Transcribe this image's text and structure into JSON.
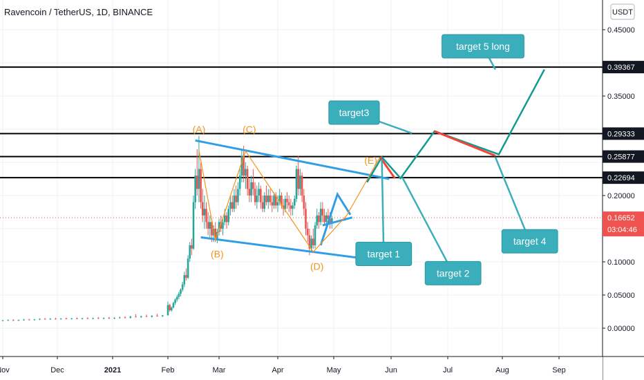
{
  "header": {
    "title": "Ravencoin / TetherUS, 1D, BINANCE"
  },
  "currency_button": "USDT",
  "colors": {
    "up": "#26a69a",
    "down": "#ef5350",
    "channel": "#2f9ee6",
    "wave": "#f7931a",
    "target_box": "#3aaeba",
    "projection_green": "#139a8f",
    "projection_red": "#f44336",
    "grid": "#eef0f3"
  },
  "chart_data": {
    "type": "candlestick",
    "symbol": "Ravencoin / TetherUS",
    "interval": "1D",
    "exchange": "BINANCE",
    "x_axis": {
      "labels": [
        "Nov",
        "Dec",
        "2021",
        "Feb",
        "Mar",
        "Apr",
        "May",
        "Jun",
        "Jul",
        "Aug",
        "Sep"
      ]
    },
    "y_axis": {
      "ylim": [
        -0.065,
        0.49
      ],
      "ticks": [
        0.45,
        0.35,
        0.2,
        0.1,
        0.05,
        0.0
      ],
      "tick_labels": [
        "0.45000",
        "0.35000",
        "0.20000",
        "0.10000",
        "0.05000",
        "0.00000"
      ]
    },
    "horizontal_levels": [
      {
        "value": 0.39367,
        "label": "0.39367"
      },
      {
        "value": 0.29333,
        "label": "0.29333"
      },
      {
        "value": 0.25877,
        "label": "0.25877"
      },
      {
        "value": 0.22694,
        "label": "0.22694"
      }
    ],
    "current_price": {
      "value": 0.16652,
      "label": "0.16652",
      "countdown": "03:04:46"
    },
    "wave_labels": [
      {
        "text": "(A)",
        "x": 110,
        "y": 0.295
      },
      {
        "text": "(B)",
        "x": 120,
        "y": 0.107
      },
      {
        "text": "(C)",
        "x": 137,
        "y": 0.295
      },
      {
        "text": "(D)",
        "x": 173,
        "y": 0.088
      },
      {
        "text": "(E)",
        "x": 202,
        "y": 0.248
      }
    ],
    "wave_path": [
      [
        110,
        0.268
      ],
      [
        119,
        0.133
      ],
      [
        135,
        0.267
      ],
      [
        171,
        0.115
      ],
      [
        189,
        0.17
      ],
      [
        207,
        0.258
      ]
    ],
    "channel_lines": [
      [
        [
          108,
          0.283
        ],
        [
          212,
          0.225
        ]
      ],
      [
        [
          111,
          0.137
        ],
        [
          204,
          0.103
        ]
      ]
    ],
    "triangle_lines": [
      [
        [
          176,
          0.155
        ],
        [
          192,
          0.167
        ]
      ],
      [
        [
          175,
          0.125
        ],
        [
          184,
          0.202
        ],
        [
          191,
          0.171
        ]
      ]
    ],
    "projection_path": {
      "green": [
        [
          200,
          0.22
        ],
        [
          208,
          0.258
        ],
        [
          218,
          0.226
        ],
        [
          236,
          0.297
        ],
        [
          272,
          0.262
        ],
        [
          297,
          0.39
        ]
      ],
      "red": [
        [
          207,
          0.258
        ],
        [
          215,
          0.226
        ],
        [
          236,
          0.297
        ],
        [
          270,
          0.26
        ]
      ]
    },
    "targets": [
      {
        "text": "target 1",
        "x": 209,
        "y": 0.112,
        "anchor": [
          208,
          0.254
        ]
      },
      {
        "text": "target 2",
        "x": 246,
        "y": 0.083,
        "anchor": [
          219,
          0.227
        ]
      },
      {
        "text": "target3",
        "x": 193,
        "y": 0.325,
        "anchor": [
          224,
          0.294
        ]
      },
      {
        "text": "target 4",
        "x": 289,
        "y": 0.131,
        "anchor": [
          270,
          0.258
        ]
      },
      {
        "text": "target 5 long",
        "x": 263,
        "y": 0.425,
        "anchor": [
          270,
          0.39
        ]
      }
    ],
    "candles": [
      [
        0,
        0.0115,
        0.0125,
        0.0105,
        0.012
      ],
      [
        3,
        0.0118,
        0.013,
        0.011,
        0.0123
      ],
      [
        6,
        0.0122,
        0.0135,
        0.0112,
        0.0117
      ],
      [
        9,
        0.0117,
        0.0128,
        0.0108,
        0.0125
      ],
      [
        12,
        0.0125,
        0.014,
        0.0115,
        0.013
      ],
      [
        15,
        0.013,
        0.0142,
        0.012,
        0.0125
      ],
      [
        18,
        0.0125,
        0.0138,
        0.0116,
        0.0132
      ],
      [
        21,
        0.0132,
        0.0148,
        0.0122,
        0.014
      ],
      [
        24,
        0.014,
        0.0155,
        0.013,
        0.0135
      ],
      [
        27,
        0.0135,
        0.015,
        0.0126,
        0.0143
      ],
      [
        30,
        0.0143,
        0.0158,
        0.0132,
        0.0137
      ],
      [
        33,
        0.0137,
        0.015,
        0.0128,
        0.0146
      ],
      [
        36,
        0.0146,
        0.016,
        0.0135,
        0.014
      ],
      [
        39,
        0.014,
        0.0153,
        0.013,
        0.0148
      ],
      [
        42,
        0.0148,
        0.0162,
        0.0136,
        0.0142
      ],
      [
        45,
        0.0142,
        0.0156,
        0.0132,
        0.015
      ],
      [
        48,
        0.015,
        0.0165,
        0.0138,
        0.0143
      ],
      [
        51,
        0.0143,
        0.0158,
        0.0133,
        0.0152
      ],
      [
        54,
        0.0152,
        0.0168,
        0.014,
        0.0146
      ],
      [
        57,
        0.0146,
        0.016,
        0.0135,
        0.0154
      ],
      [
        60,
        0.0154,
        0.017,
        0.0142,
        0.0148
      ],
      [
        63,
        0.0148,
        0.0163,
        0.0137,
        0.0156
      ],
      [
        66,
        0.0156,
        0.0175,
        0.0145,
        0.0162
      ],
      [
        69,
        0.0162,
        0.018,
        0.015,
        0.0155
      ],
      [
        72,
        0.0155,
        0.0185,
        0.0148,
        0.0175
      ],
      [
        75,
        0.0175,
        0.021,
        0.0165,
        0.0168
      ],
      [
        78,
        0.0168,
        0.019,
        0.0155,
        0.018
      ],
      [
        81,
        0.018,
        0.0205,
        0.017,
        0.0172
      ],
      [
        84,
        0.0172,
        0.0195,
        0.016,
        0.0188
      ],
      [
        87,
        0.0188,
        0.0215,
        0.0175,
        0.018
      ],
      [
        90,
        0.018,
        0.02,
        0.0168,
        0.0195
      ],
      [
        93,
        0.0195,
        0.04,
        0.019,
        0.035
      ],
      [
        94,
        0.035,
        0.037,
        0.025,
        0.027
      ],
      [
        95,
        0.027,
        0.033,
        0.025,
        0.031
      ],
      [
        96,
        0.031,
        0.04,
        0.03,
        0.038
      ],
      [
        97,
        0.038,
        0.045,
        0.035,
        0.043
      ],
      [
        98,
        0.043,
        0.05,
        0.04,
        0.047
      ],
      [
        99,
        0.047,
        0.055,
        0.044,
        0.052
      ],
      [
        100,
        0.052,
        0.06,
        0.048,
        0.058
      ],
      [
        101,
        0.058,
        0.07,
        0.055,
        0.066
      ],
      [
        102,
        0.066,
        0.085,
        0.062,
        0.08
      ],
      [
        103,
        0.08,
        0.09,
        0.072,
        0.076
      ],
      [
        104,
        0.076,
        0.11,
        0.074,
        0.105
      ],
      [
        105,
        0.105,
        0.13,
        0.1,
        0.125
      ],
      [
        106,
        0.125,
        0.135,
        0.11,
        0.12
      ],
      [
        107,
        0.12,
        0.2,
        0.118,
        0.19
      ],
      [
        108,
        0.19,
        0.24,
        0.18,
        0.23
      ],
      [
        109,
        0.23,
        0.27,
        0.2,
        0.21
      ],
      [
        110,
        0.21,
        0.29,
        0.19,
        0.24
      ],
      [
        111,
        0.24,
        0.25,
        0.18,
        0.19
      ],
      [
        112,
        0.19,
        0.21,
        0.16,
        0.17
      ],
      [
        113,
        0.17,
        0.2,
        0.15,
        0.18
      ],
      [
        114,
        0.18,
        0.19,
        0.15,
        0.16
      ],
      [
        115,
        0.16,
        0.175,
        0.14,
        0.15
      ],
      [
        116,
        0.15,
        0.17,
        0.135,
        0.16
      ],
      [
        117,
        0.16,
        0.165,
        0.13,
        0.14
      ],
      [
        118,
        0.14,
        0.155,
        0.13,
        0.15
      ],
      [
        119,
        0.15,
        0.16,
        0.13,
        0.135
      ],
      [
        120,
        0.135,
        0.15,
        0.128,
        0.145
      ],
      [
        121,
        0.145,
        0.165,
        0.14,
        0.16
      ],
      [
        122,
        0.16,
        0.17,
        0.145,
        0.15
      ],
      [
        123,
        0.15,
        0.165,
        0.14,
        0.16
      ],
      [
        124,
        0.16,
        0.18,
        0.155,
        0.17
      ],
      [
        125,
        0.17,
        0.175,
        0.15,
        0.16
      ],
      [
        126,
        0.16,
        0.185,
        0.155,
        0.18
      ],
      [
        127,
        0.18,
        0.2,
        0.17,
        0.19
      ],
      [
        128,
        0.19,
        0.2,
        0.175,
        0.18
      ],
      [
        129,
        0.18,
        0.21,
        0.175,
        0.2
      ],
      [
        130,
        0.2,
        0.215,
        0.18,
        0.19
      ],
      [
        131,
        0.19,
        0.22,
        0.185,
        0.21
      ],
      [
        132,
        0.21,
        0.24,
        0.2,
        0.23
      ],
      [
        133,
        0.23,
        0.27,
        0.22,
        0.26
      ],
      [
        134,
        0.26,
        0.275,
        0.22,
        0.23
      ],
      [
        135,
        0.23,
        0.25,
        0.21,
        0.24
      ],
      [
        136,
        0.24,
        0.245,
        0.2,
        0.21
      ],
      [
        137,
        0.21,
        0.225,
        0.19,
        0.2
      ],
      [
        138,
        0.2,
        0.23,
        0.19,
        0.22
      ],
      [
        139,
        0.22,
        0.24,
        0.2,
        0.21
      ],
      [
        140,
        0.21,
        0.22,
        0.185,
        0.19
      ],
      [
        141,
        0.19,
        0.215,
        0.18,
        0.2
      ],
      [
        142,
        0.2,
        0.22,
        0.19,
        0.21
      ],
      [
        143,
        0.21,
        0.215,
        0.18,
        0.19
      ],
      [
        144,
        0.19,
        0.2,
        0.175,
        0.18
      ],
      [
        145,
        0.18,
        0.205,
        0.175,
        0.2
      ],
      [
        146,
        0.2,
        0.215,
        0.185,
        0.19
      ],
      [
        147,
        0.19,
        0.21,
        0.18,
        0.2
      ],
      [
        148,
        0.2,
        0.21,
        0.185,
        0.19
      ],
      [
        149,
        0.19,
        0.2,
        0.175,
        0.185
      ],
      [
        150,
        0.185,
        0.205,
        0.18,
        0.2
      ],
      [
        151,
        0.2,
        0.205,
        0.18,
        0.185
      ],
      [
        152,
        0.185,
        0.2,
        0.175,
        0.19
      ],
      [
        153,
        0.19,
        0.21,
        0.185,
        0.2
      ],
      [
        154,
        0.2,
        0.205,
        0.18,
        0.185
      ],
      [
        155,
        0.185,
        0.195,
        0.17,
        0.18
      ],
      [
        156,
        0.18,
        0.2,
        0.175,
        0.195
      ],
      [
        157,
        0.195,
        0.205,
        0.18,
        0.19
      ],
      [
        158,
        0.19,
        0.2,
        0.175,
        0.185
      ],
      [
        159,
        0.185,
        0.195,
        0.17,
        0.18
      ],
      [
        160,
        0.18,
        0.19,
        0.17,
        0.185
      ],
      [
        161,
        0.185,
        0.2,
        0.18,
        0.195
      ],
      [
        162,
        0.195,
        0.245,
        0.19,
        0.24
      ],
      [
        163,
        0.24,
        0.26,
        0.2,
        0.21
      ],
      [
        164,
        0.21,
        0.24,
        0.2,
        0.23
      ],
      [
        165,
        0.23,
        0.235,
        0.19,
        0.2
      ],
      [
        166,
        0.2,
        0.21,
        0.17,
        0.18
      ],
      [
        167,
        0.18,
        0.19,
        0.14,
        0.15
      ],
      [
        168,
        0.15,
        0.16,
        0.13,
        0.14
      ],
      [
        169,
        0.14,
        0.15,
        0.11,
        0.12
      ],
      [
        170,
        0.12,
        0.14,
        0.115,
        0.135
      ],
      [
        171,
        0.135,
        0.15,
        0.12,
        0.125
      ],
      [
        172,
        0.125,
        0.16,
        0.12,
        0.155
      ],
      [
        173,
        0.155,
        0.18,
        0.15,
        0.17
      ],
      [
        174,
        0.17,
        0.175,
        0.15,
        0.16
      ],
      [
        175,
        0.16,
        0.19,
        0.155,
        0.18
      ],
      [
        176,
        0.18,
        0.19,
        0.16,
        0.17
      ],
      [
        177,
        0.17,
        0.18,
        0.155,
        0.16
      ],
      [
        178,
        0.16,
        0.175,
        0.15,
        0.17
      ],
      [
        179,
        0.17,
        0.18,
        0.155,
        0.165
      ],
      [
        180,
        0.165,
        0.175,
        0.15,
        0.158
      ],
      [
        181,
        0.158,
        0.17,
        0.15,
        0.166
      ]
    ]
  }
}
